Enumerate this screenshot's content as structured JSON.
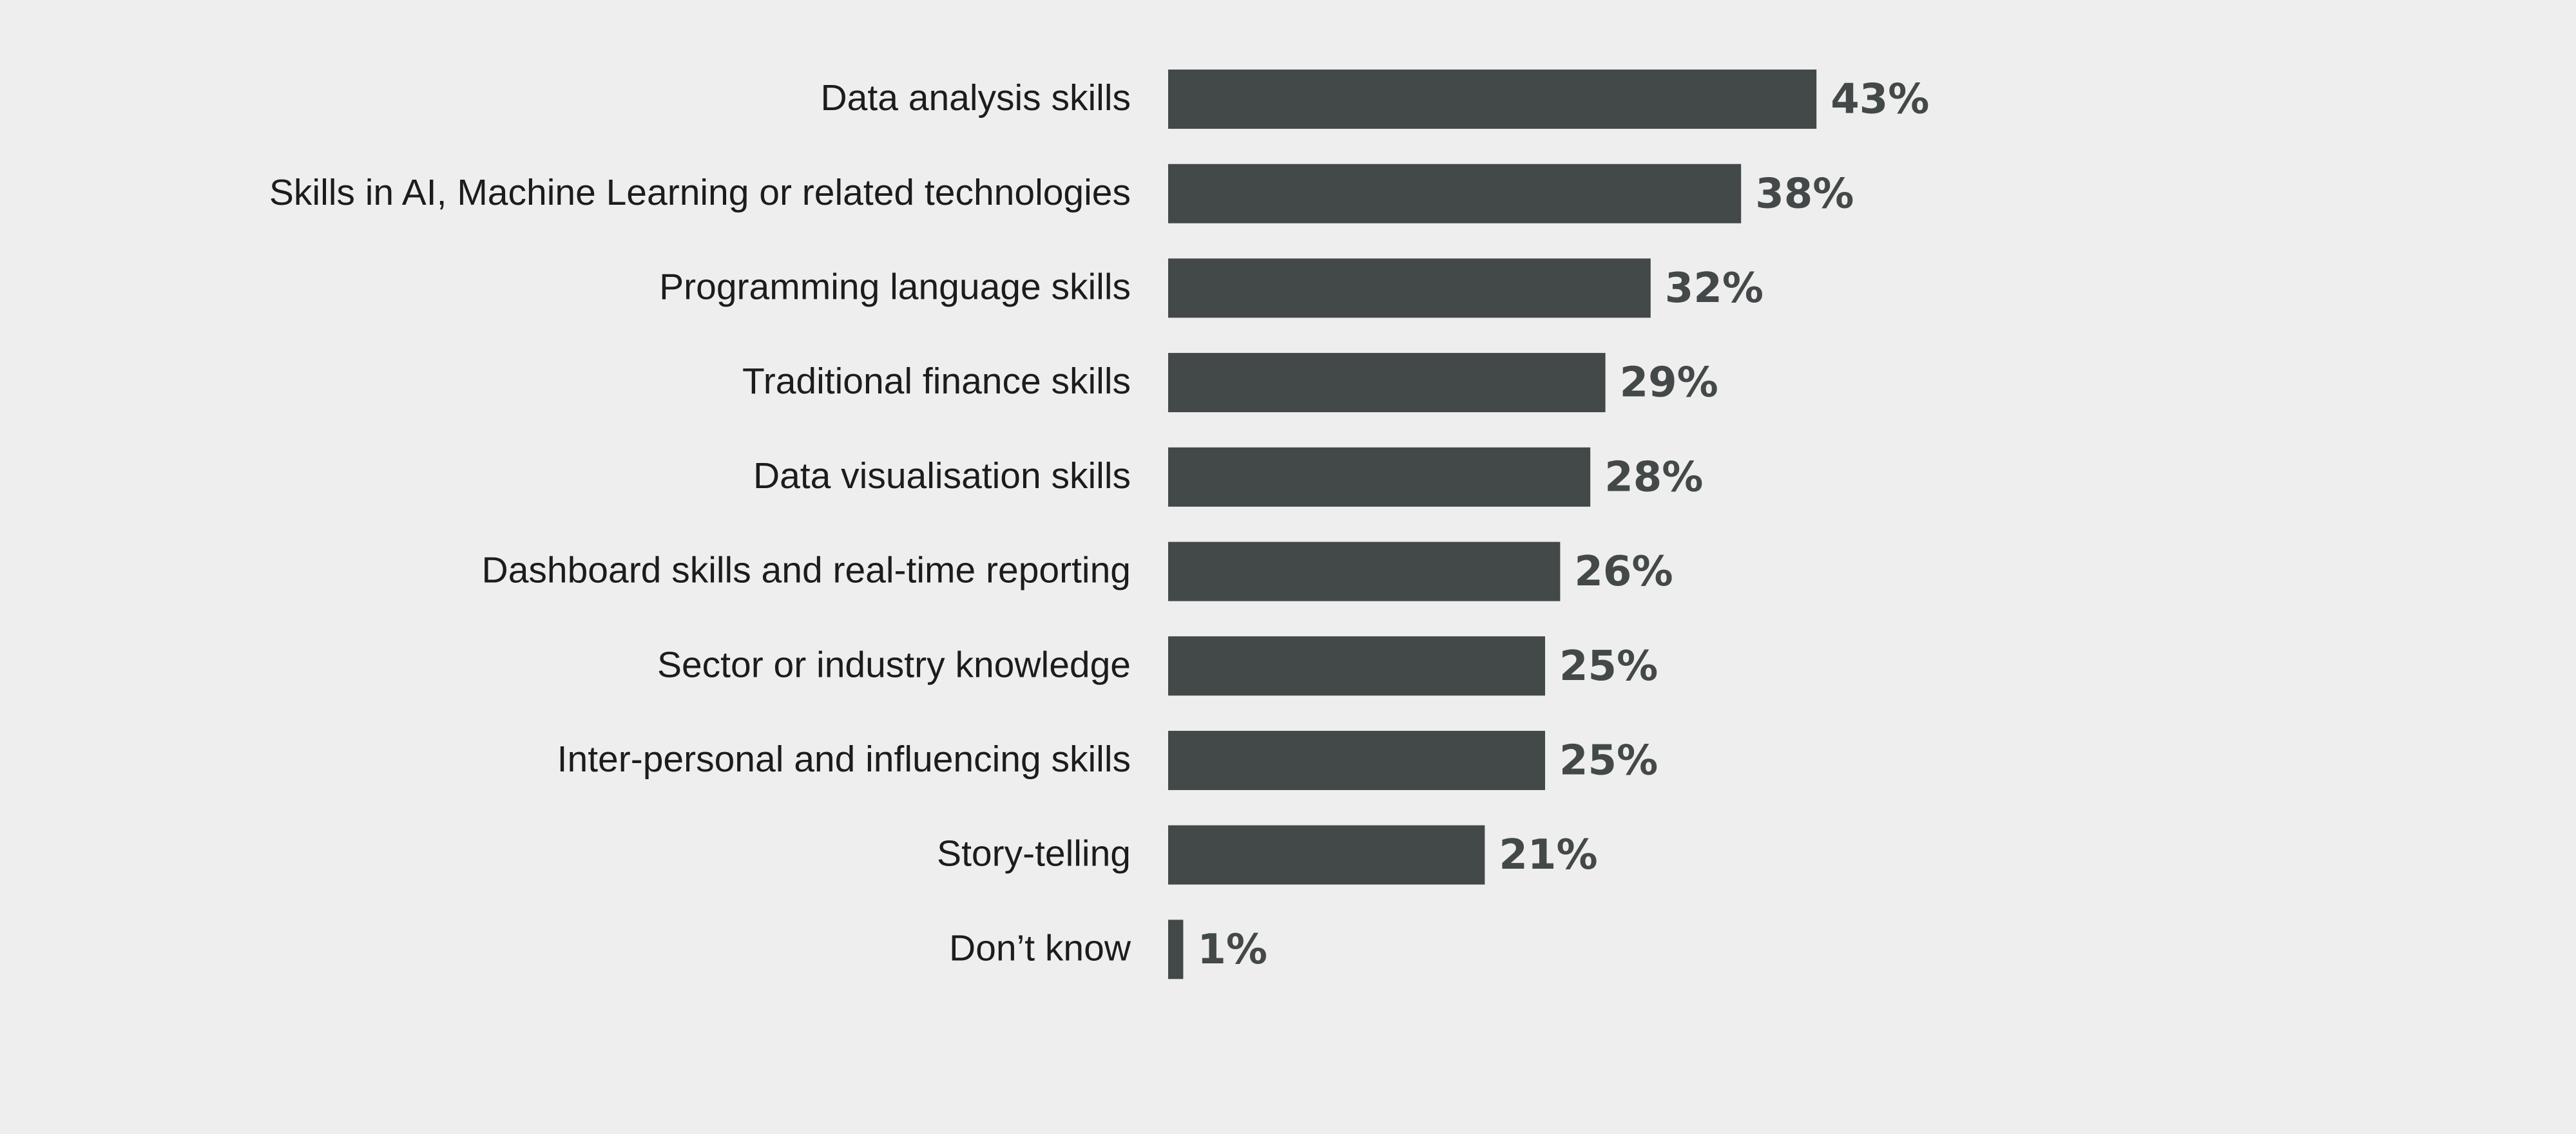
{
  "colors": {
    "background": "#eeeeee",
    "bar": "#434848",
    "label_text": "#1c1c1c",
    "value_text": "#434848"
  },
  "chart_data": {
    "type": "bar",
    "orientation": "horizontal",
    "title": "",
    "xlabel": "",
    "ylabel": "",
    "grid": false,
    "legend": "none",
    "xlim": [
      0,
      100
    ],
    "value_suffix": "%",
    "categories": [
      "Data analysis skills",
      "Skills in AI, Machine Learning or related technologies",
      "Programming language skills",
      "Traditional finance skills",
      "Data visualisation skills",
      "Dashboard skills and real-time reporting",
      "Sector or industry knowledge",
      "Inter-personal and influencing skills",
      "Story-telling",
      "Don’t know"
    ],
    "values": [
      43,
      38,
      32,
      29,
      28,
      26,
      25,
      25,
      21,
      1
    ],
    "value_labels": [
      "43%",
      "38%",
      "32%",
      "29%",
      "28%",
      "26%",
      "25%",
      "25%",
      "21%",
      "1%"
    ]
  }
}
